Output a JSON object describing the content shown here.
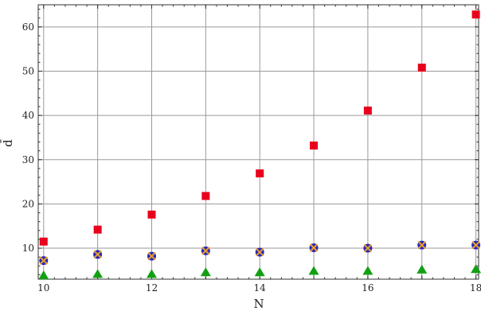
{
  "chart_data": {
    "type": "scatter",
    "xlabel": "N",
    "ylabel": "d̄",
    "xlim": [
      9.9,
      18.05
    ],
    "ylim": [
      3,
      65
    ],
    "grid": true,
    "x_ticks": [
      10,
      12,
      14,
      16,
      18
    ],
    "y_ticks": [
      10,
      20,
      30,
      40,
      50,
      60
    ],
    "x": [
      10,
      11,
      12,
      13,
      14,
      15,
      16,
      17,
      18
    ],
    "series": [
      {
        "marker": "square",
        "color": "#e8001c",
        "values": [
          11.5,
          14.2,
          17.6,
          21.8,
          26.9,
          33.2,
          41.1,
          50.8,
          62.8
        ]
      },
      {
        "marker": "circle-x",
        "color": "#2a2ab8",
        "cross_color": "#e8a030",
        "values": [
          7.2,
          8.6,
          8.2,
          9.4,
          9.1,
          10.1,
          10.0,
          10.7,
          10.7
        ]
      },
      {
        "marker": "triangle",
        "color": "#12a012",
        "values": [
          3.9,
          4.2,
          4.2,
          4.6,
          4.6,
          4.9,
          4.9,
          5.2,
          5.3
        ]
      }
    ]
  }
}
